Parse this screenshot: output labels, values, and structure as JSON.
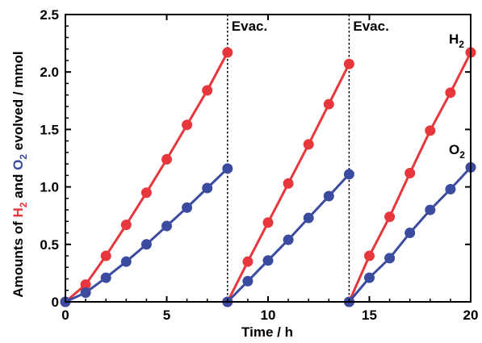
{
  "chart_data": {
    "type": "line",
    "xlabel": "Time / h",
    "ylabel": {
      "prefix": "Amounts of ",
      "h2_main": "H",
      "h2_sub": "2",
      "middle": " and ",
      "o2_main": "O",
      "o2_sub": "2",
      "suffix": " evolved / mmol"
    },
    "xlim": [
      0,
      20
    ],
    "ylim": [
      0,
      2.5
    ],
    "x_ticks": [
      "0",
      "5",
      "10",
      "15",
      "20"
    ],
    "y_ticks": [
      "0",
      "0.5",
      "1.0",
      "1.5",
      "2.0",
      "2.5"
    ],
    "grid": false,
    "annotations": [
      {
        "text": "Evac.",
        "x": 8
      },
      {
        "text": "Evac.",
        "x": 14
      }
    ],
    "series": [
      {
        "name": "H2",
        "label_main": "H",
        "label_sub": "2",
        "color": "#e8373c",
        "segments": [
          [
            [
              0,
              0
            ],
            [
              1,
              0.15
            ],
            [
              2,
              0.4
            ],
            [
              3,
              0.67
            ],
            [
              4,
              0.95
            ],
            [
              5,
              1.24
            ],
            [
              6,
              1.54
            ],
            [
              7,
              1.84
            ],
            [
              8,
              2.17
            ]
          ],
          [
            [
              8,
              0
            ],
            [
              9,
              0.35
            ],
            [
              10,
              0.69
            ],
            [
              11,
              1.03
            ],
            [
              12,
              1.37
            ],
            [
              13,
              1.72
            ],
            [
              14,
              2.07
            ]
          ],
          [
            [
              14,
              0
            ],
            [
              15,
              0.4
            ],
            [
              16,
              0.74
            ],
            [
              17,
              1.12
            ],
            [
              18,
              1.49
            ],
            [
              19,
              1.82
            ],
            [
              20,
              2.17
            ]
          ]
        ]
      },
      {
        "name": "O2",
        "label_main": "O",
        "label_sub": "2",
        "color": "#3a4ba0",
        "segments": [
          [
            [
              0,
              0
            ],
            [
              1,
              0.08
            ],
            [
              2,
              0.21
            ],
            [
              3,
              0.35
            ],
            [
              4,
              0.5
            ],
            [
              5,
              0.66
            ],
            [
              6,
              0.82
            ],
            [
              7,
              0.99
            ],
            [
              8,
              1.16
            ]
          ],
          [
            [
              8,
              0
            ],
            [
              9,
              0.18
            ],
            [
              10,
              0.36
            ],
            [
              11,
              0.54
            ],
            [
              12,
              0.73
            ],
            [
              13,
              0.92
            ],
            [
              14,
              1.11
            ]
          ],
          [
            [
              14,
              0
            ],
            [
              15,
              0.21
            ],
            [
              16,
              0.38
            ],
            [
              17,
              0.6
            ],
            [
              18,
              0.8
            ],
            [
              19,
              0.98
            ],
            [
              20,
              1.17
            ]
          ]
        ]
      }
    ]
  }
}
